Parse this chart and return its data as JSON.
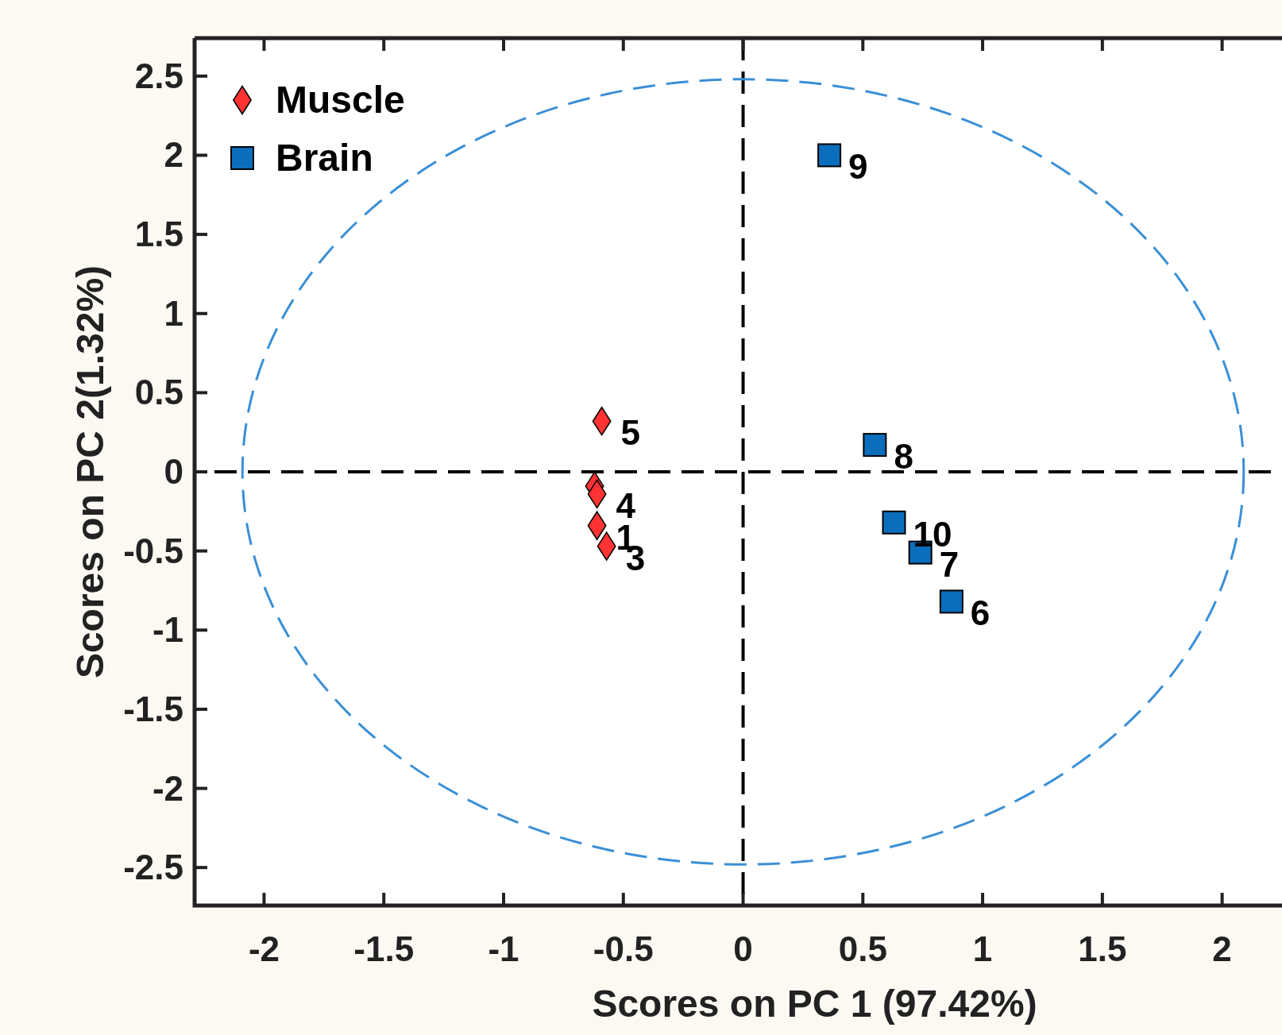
{
  "chart_data": {
    "type": "scatter",
    "xlabel": "Scores on PC 1 (97.42%)",
    "ylabel": "Scores on PC 2(1.32%)",
    "xlim": [
      -2.29,
      2.25
    ],
    "ylim": [
      -2.74,
      2.74
    ],
    "xticks": [
      -2,
      -1.5,
      -1,
      -0.5,
      0,
      0.5,
      1,
      1.5,
      2
    ],
    "yticks": [
      -2.5,
      -2,
      -1.5,
      -1,
      -0.5,
      0,
      0.5,
      1,
      1.5,
      2,
      2.5
    ],
    "grid": false,
    "legend": "top left",
    "series": [
      {
        "name": "Muscle",
        "color": "#ff3333",
        "marker": "diamond",
        "x": [
          -0.61,
          -0.62,
          -0.57,
          -0.61,
          -0.59
        ],
        "values": [
          -0.34,
          -0.09,
          -0.47,
          -0.14,
          0.32
        ]
      },
      {
        "name": "Brain",
        "color": "#0a6ebd",
        "marker": "square",
        "x": [
          0.87,
          0.74,
          0.55,
          0.36,
          0.63
        ],
        "values": [
          -0.82,
          -0.51,
          0.17,
          2.0,
          -0.32
        ]
      }
    ],
    "ref_lines": [
      {
        "axis": "x",
        "value": 0,
        "color": "#000000",
        "line_style": "dashed"
      },
      {
        "axis": "y",
        "value": 0,
        "color": "#000000",
        "line_style": "dashed"
      }
    ],
    "annotations": [
      {
        "text": "1",
        "x": -0.61,
        "y": -0.34
      },
      {
        "text": "3",
        "x": -0.57,
        "y": -0.47
      },
      {
        "text": "4",
        "x": -0.61,
        "y": -0.14
      },
      {
        "text": "5",
        "x": -0.59,
        "y": 0.32
      },
      {
        "text": "6",
        "x": 0.87,
        "y": -0.82
      },
      {
        "text": "7",
        "x": 0.74,
        "y": -0.51
      },
      {
        "text": "8",
        "x": 0.55,
        "y": 0.17
      },
      {
        "text": "9",
        "x": 0.36,
        "y": 2.0
      },
      {
        "text": "10",
        "x": 0.63,
        "y": -0.32
      }
    ]
  }
}
